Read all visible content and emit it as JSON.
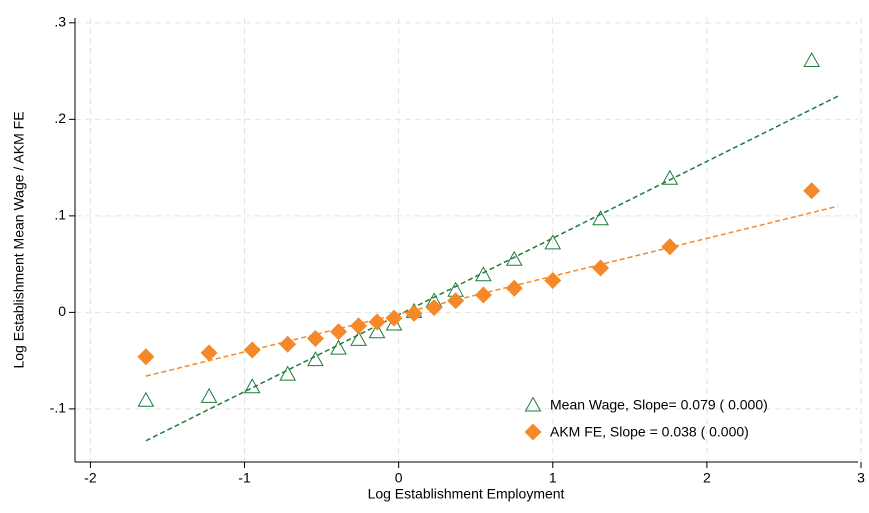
{
  "chart_data": {
    "type": "scatter",
    "xlabel": "Log Establishment Employment",
    "ylabel": "Log Establishment Mean Wage / AKM FE",
    "xlim": [
      -2.1,
      3.0
    ],
    "ylim": [
      -0.155,
      0.305
    ],
    "xticks": [
      -2,
      -1,
      0,
      1,
      2,
      3
    ],
    "yticks": [
      {
        "value": -0.1,
        "label": "-.1"
      },
      0,
      {
        "value": 0.1,
        "label": ".1"
      },
      {
        "value": 0.2,
        "label": ".2"
      },
      {
        "value": 0.3,
        "label": ".3"
      }
    ],
    "grid": true,
    "legend": "lower right",
    "series": [
      {
        "name": "Mean Wage, Slope= 0.079 ( 0.000)",
        "color": "#1e7b3a",
        "marker": "triangle",
        "x": [
          -1.64,
          -1.23,
          -0.95,
          -0.72,
          -0.54,
          -0.39,
          -0.26,
          -0.14,
          -0.03,
          0.1,
          0.23,
          0.37,
          0.55,
          0.75,
          1.0,
          1.31,
          1.76,
          2.68
        ],
        "values": [
          -0.091,
          -0.087,
          -0.077,
          -0.064,
          -0.049,
          -0.037,
          -0.028,
          -0.02,
          -0.012,
          0.001,
          0.012,
          0.023,
          0.039,
          0.055,
          0.072,
          0.097,
          0.139,
          0.261
        ],
        "fit_x": [
          -1.64,
          2.85
        ],
        "fit_y": [
          -0.133,
          0.224
        ]
      },
      {
        "name": "AKM FE, Slope = 0.038 ( 0.000)",
        "color": "#f5892a",
        "marker": "diamond",
        "x": [
          -1.64,
          -1.23,
          -0.95,
          -0.72,
          -0.54,
          -0.39,
          -0.26,
          -0.14,
          -0.03,
          0.1,
          0.23,
          0.37,
          0.55,
          0.75,
          1.0,
          1.31,
          1.76,
          2.68
        ],
        "values": [
          -0.046,
          -0.042,
          -0.039,
          -0.033,
          -0.027,
          -0.02,
          -0.014,
          -0.01,
          -0.006,
          -0.001,
          0.005,
          0.012,
          0.018,
          0.025,
          0.033,
          0.046,
          0.068,
          0.126
        ],
        "fit_x": [
          -1.64,
          2.85
        ],
        "fit_y": [
          -0.066,
          0.11
        ]
      }
    ]
  }
}
